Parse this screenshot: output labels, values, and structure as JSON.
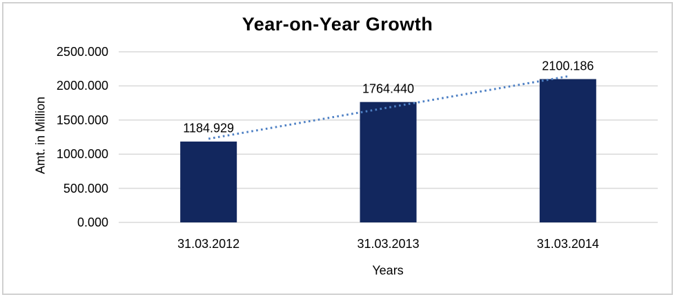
{
  "chart_data": {
    "type": "bar",
    "title": "Year-on-Year Growth",
    "xlabel": "Years",
    "ylabel": "Amt. in Million",
    "categories": [
      "31.03.2012",
      "31.03.2013",
      "31.03.2014"
    ],
    "series": [
      {
        "name": "Amt. in Million",
        "values": [
          1184.929,
          1764.44,
          2100.186
        ],
        "value_labels": [
          "1184.929",
          "1764.440",
          "2100.186"
        ]
      }
    ],
    "yticks": {
      "values": [
        0,
        500,
        1000,
        1500,
        2000,
        2500
      ],
      "labels": [
        "0.000",
        "500.000",
        "1000.000",
        "1500.000",
        "2000.000",
        "2500.000"
      ]
    },
    "ylim": [
      0,
      2500
    ],
    "grid": "horizontal",
    "legend": "none",
    "trendline": {
      "fit": "linear",
      "style": "dotted"
    },
    "colors": {
      "bar": "#12275E",
      "trendline": "#4E80C4",
      "gridline": "#D9D9D9",
      "text": "#000000",
      "frame_border": "#D0D0D0",
      "background": "#FFFFFF"
    }
  }
}
